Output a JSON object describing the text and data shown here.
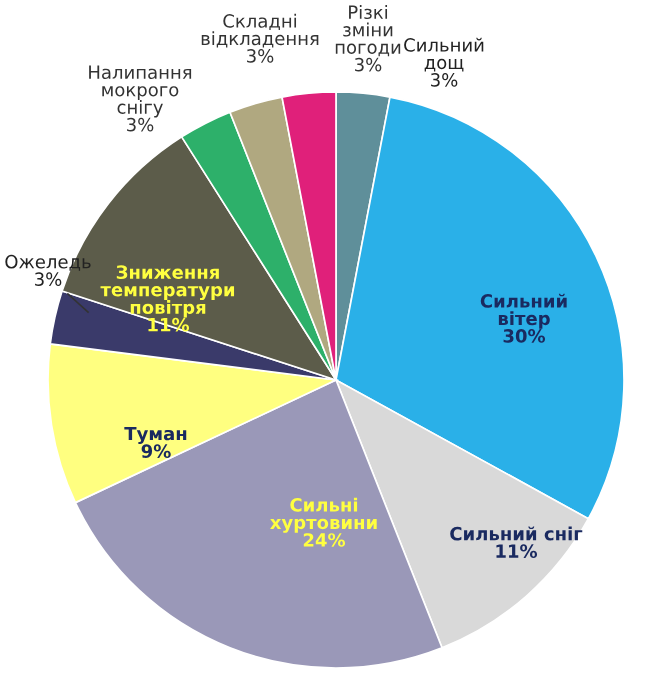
{
  "chart_data": {
    "type": "pie",
    "categories": [
      "Сильний\nдощ",
      "Сильний\nвітер",
      "Сильний сніг",
      "Сильні\nхуртовини",
      "Туман",
      "Ожеледь",
      "Зниження\nтемператури\nповітря",
      "Налипання\nмокрого\nснігу",
      "Складні\nвідкладення",
      "Різкі\nзміни\nпогоди"
    ],
    "values": [
      3,
      30,
      11,
      24,
      9,
      3,
      11,
      3,
      3,
      3
    ],
    "value_labels": [
      "3%",
      "30%",
      "11%",
      "24%",
      "9%",
      "3%",
      "11%",
      "3%",
      "3%",
      "3%"
    ],
    "colors": [
      "#5f8f9a",
      "#2ab0e8",
      "#d9d9d9",
      "#9a98b8",
      "#ffff80",
      "#3a3a6a",
      "#5c5c4a",
      "#2db06a",
      "#b0a880",
      "#e0207a"
    ],
    "legend": false
  }
}
